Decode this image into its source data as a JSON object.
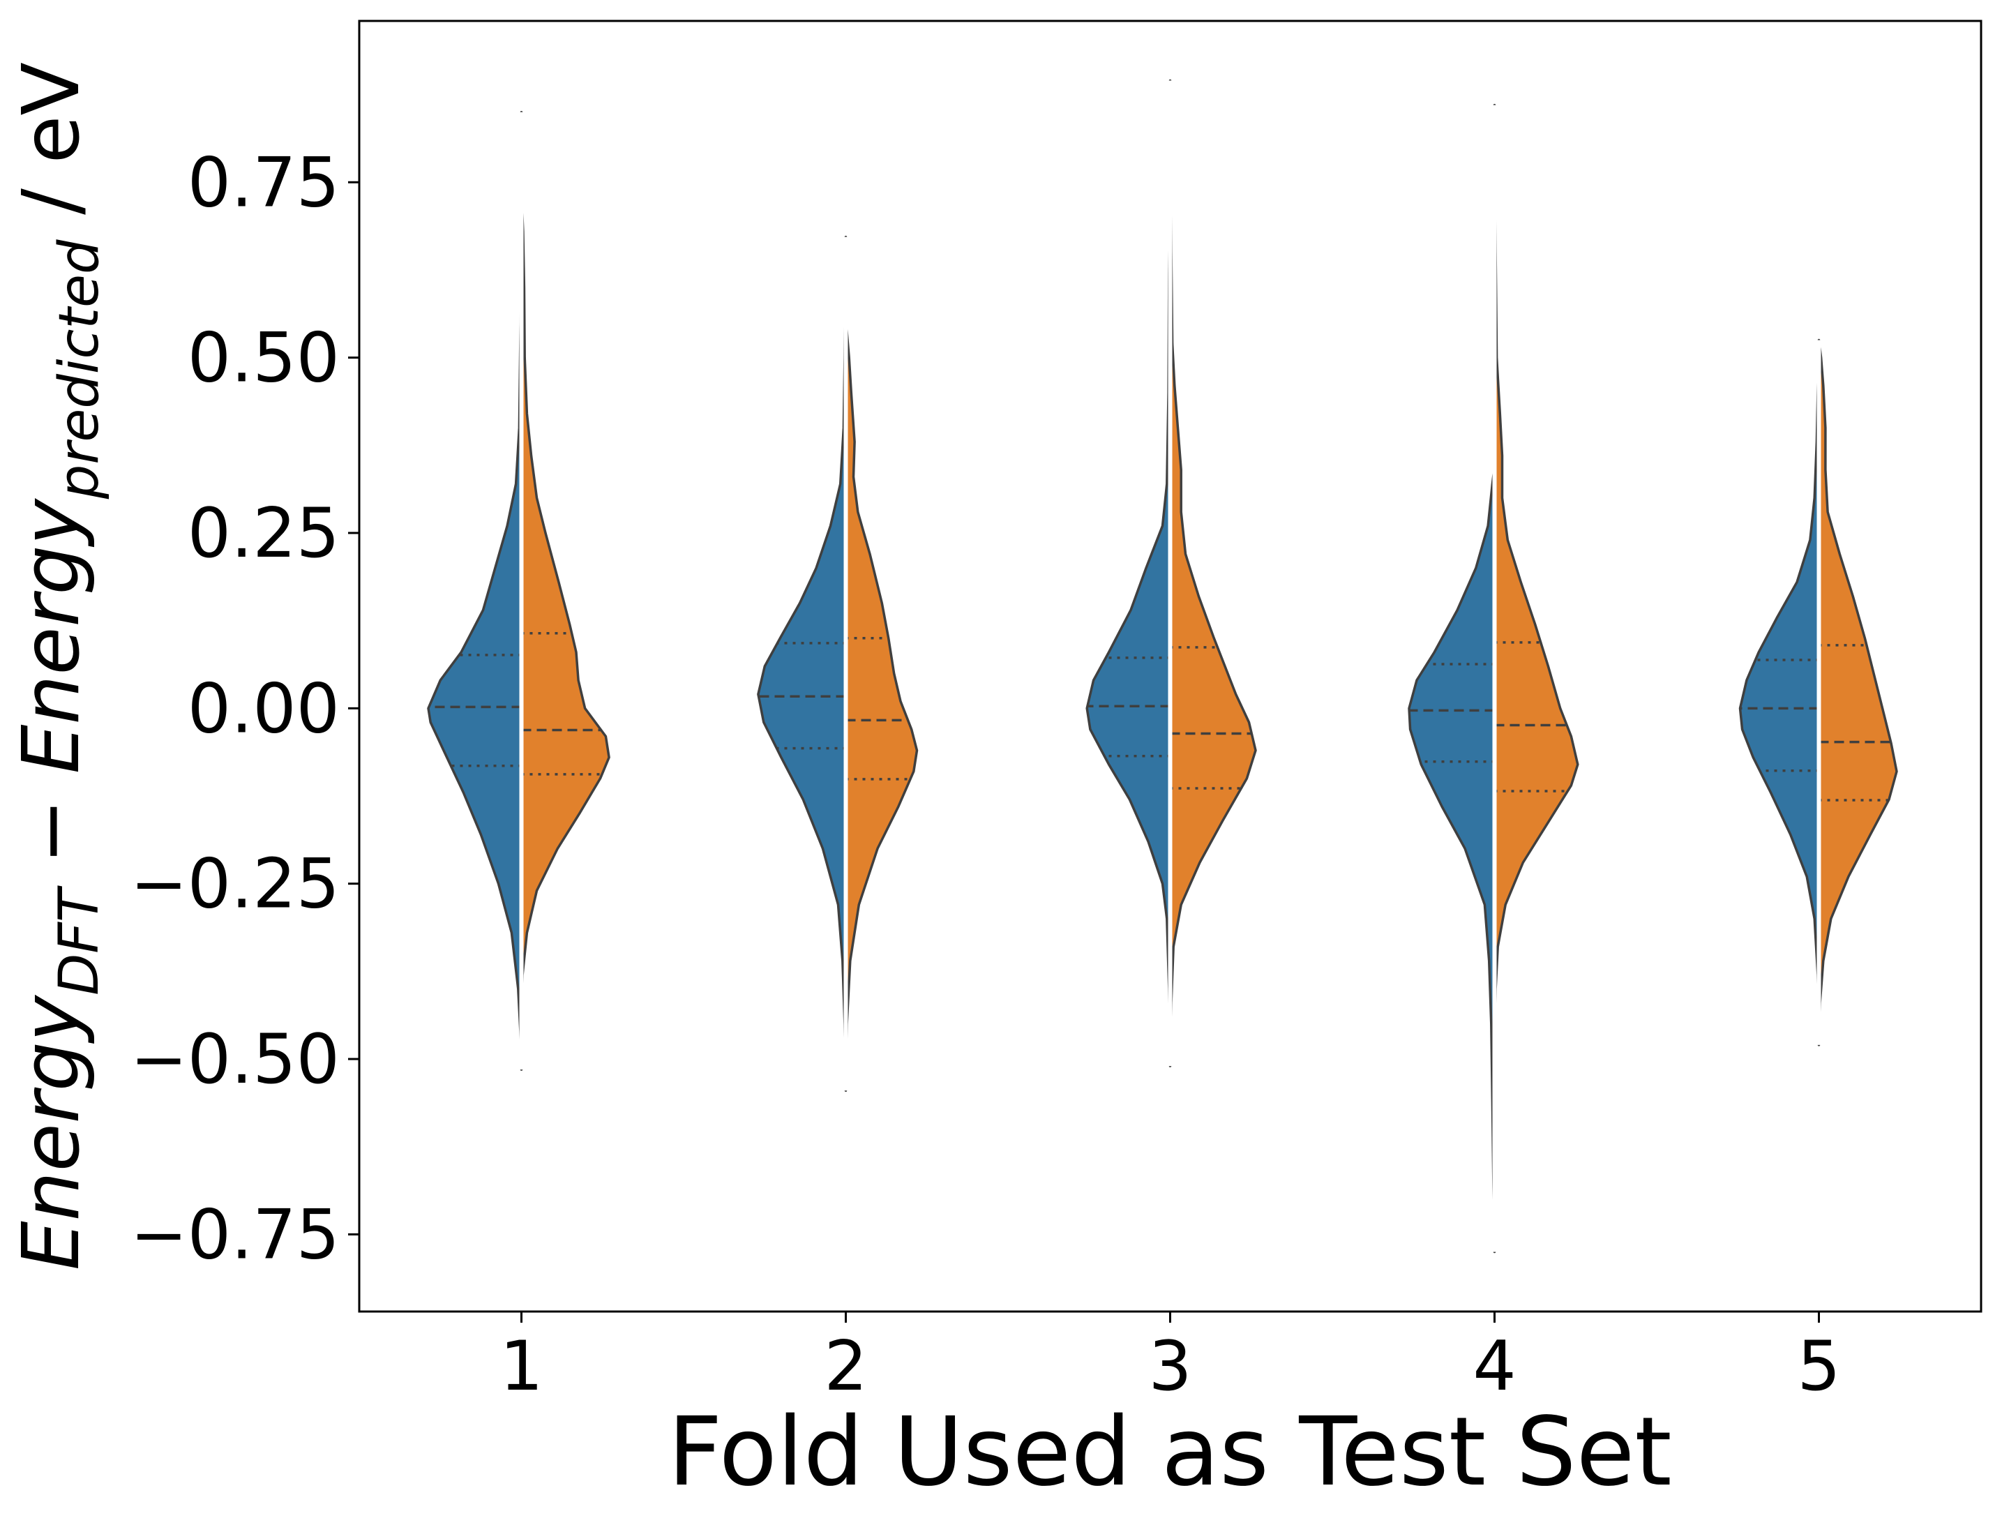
{
  "chart_data": {
    "type": "violin",
    "split": true,
    "xlabel": "Fold Used as Test Set",
    "ylabel": {
      "parts": [
        {
          "text": "Energy",
          "italic": true,
          "sub": false
        },
        {
          "text": "DFT",
          "italic": true,
          "sub": true
        },
        {
          "text": " − ",
          "italic": false,
          "sub": false
        },
        {
          "text": "Energy",
          "italic": true,
          "sub": false
        },
        {
          "text": "predicted",
          "italic": true,
          "sub": true
        },
        {
          "text": " / eV",
          "italic": false,
          "sub": false
        }
      ]
    },
    "ylim": [
      -0.86,
      0.98
    ],
    "yticks": [
      -0.75,
      -0.5,
      -0.25,
      0.0,
      0.25,
      0.5,
      0.75
    ],
    "ytick_labels": [
      "−0.75",
      "−0.50",
      "−0.25",
      "0.00",
      "0.25",
      "0.50",
      "0.75"
    ],
    "categories": [
      "1",
      "2",
      "3",
      "4",
      "5"
    ],
    "series": [
      {
        "side": "left",
        "color": "#3274a1"
      },
      {
        "side": "right",
        "color": "#e1812c"
      }
    ],
    "violins": [
      {
        "fold": "1",
        "left": {
          "min": -0.515,
          "max": 0.85,
          "q1": -0.082,
          "median": 0.002,
          "q3": 0.076,
          "profile": [
            [
              -0.515,
              0.0
            ],
            [
              -0.46,
              0.01
            ],
            [
              -0.4,
              0.03
            ],
            [
              -0.32,
              0.09
            ],
            [
              -0.25,
              0.21
            ],
            [
              -0.18,
              0.37
            ],
            [
              -0.12,
              0.53
            ],
            [
              -0.06,
              0.71
            ],
            [
              -0.02,
              0.83
            ],
            [
              0.0,
              0.85
            ],
            [
              0.04,
              0.74
            ],
            [
              0.08,
              0.55
            ],
            [
              0.14,
              0.35
            ],
            [
              0.2,
              0.24
            ],
            [
              0.26,
              0.13
            ],
            [
              0.32,
              0.05
            ],
            [
              0.4,
              0.02
            ],
            [
              0.55,
              0.008
            ],
            [
              0.7,
              0.005
            ],
            [
              0.85,
              0.0
            ]
          ]
        },
        "right": {
          "min": -0.435,
          "max": 0.735,
          "q1": -0.094,
          "median": -0.031,
          "q3": 0.107,
          "profile": [
            [
              -0.435,
              0.0
            ],
            [
              -0.38,
              0.01
            ],
            [
              -0.32,
              0.05
            ],
            [
              -0.26,
              0.14
            ],
            [
              -0.2,
              0.33
            ],
            [
              -0.15,
              0.53
            ],
            [
              -0.1,
              0.72
            ],
            [
              -0.07,
              0.8
            ],
            [
              -0.04,
              0.77
            ],
            [
              0.0,
              0.58
            ],
            [
              0.04,
              0.52
            ],
            [
              0.08,
              0.5
            ],
            [
              0.12,
              0.44
            ],
            [
              0.18,
              0.34
            ],
            [
              0.25,
              0.22
            ],
            [
              0.3,
              0.14
            ],
            [
              0.36,
              0.09
            ],
            [
              0.42,
              0.05
            ],
            [
              0.5,
              0.03
            ],
            [
              0.6,
              0.025
            ],
            [
              0.68,
              0.015
            ],
            [
              0.735,
              0.0
            ]
          ]
        }
      },
      {
        "fold": "2",
        "left": {
          "min": -0.54,
          "max": 0.672,
          "q1": -0.057,
          "median": 0.017,
          "q3": 0.093,
          "profile": [
            [
              -0.54,
              0.0
            ],
            [
              -0.45,
              0.01
            ],
            [
              -0.36,
              0.03
            ],
            [
              -0.28,
              0.07
            ],
            [
              -0.2,
              0.21
            ],
            [
              -0.13,
              0.39
            ],
            [
              -0.07,
              0.59
            ],
            [
              -0.02,
              0.75
            ],
            [
              0.02,
              0.8
            ],
            [
              0.06,
              0.74
            ],
            [
              0.1,
              0.6
            ],
            [
              0.15,
              0.42
            ],
            [
              0.2,
              0.27
            ],
            [
              0.26,
              0.14
            ],
            [
              0.32,
              0.05
            ],
            [
              0.4,
              0.02
            ],
            [
              0.5,
              0.01
            ],
            [
              0.6,
              0.005
            ],
            [
              0.672,
              0.0
            ]
          ]
        },
        "right": {
          "min": -0.545,
          "max": 0.555,
          "q1": -0.101,
          "median": -0.017,
          "q3": 0.1,
          "profile": [
            [
              -0.545,
              0.0
            ],
            [
              -0.45,
              0.01
            ],
            [
              -0.36,
              0.04
            ],
            [
              -0.28,
              0.12
            ],
            [
              -0.2,
              0.29
            ],
            [
              -0.14,
              0.48
            ],
            [
              -0.09,
              0.62
            ],
            [
              -0.06,
              0.65
            ],
            [
              -0.03,
              0.6
            ],
            [
              0.01,
              0.5
            ],
            [
              0.05,
              0.44
            ],
            [
              0.1,
              0.39
            ],
            [
              0.15,
              0.33
            ],
            [
              0.22,
              0.22
            ],
            [
              0.28,
              0.11
            ],
            [
              0.33,
              0.07
            ],
            [
              0.38,
              0.08
            ],
            [
              0.45,
              0.05
            ],
            [
              0.5,
              0.03
            ],
            [
              0.555,
              0.0
            ]
          ]
        }
      },
      {
        "fold": "3",
        "left": {
          "min": -0.495,
          "max": 0.77,
          "q1": -0.068,
          "median": 0.003,
          "q3": 0.072,
          "profile": [
            [
              -0.495,
              0.0
            ],
            [
              -0.4,
              0.01
            ],
            [
              -0.3,
              0.03
            ],
            [
              -0.25,
              0.07
            ],
            [
              -0.19,
              0.2
            ],
            [
              -0.13,
              0.37
            ],
            [
              -0.08,
              0.56
            ],
            [
              -0.03,
              0.73
            ],
            [
              0.0,
              0.76
            ],
            [
              0.04,
              0.7
            ],
            [
              0.08,
              0.56
            ],
            [
              0.14,
              0.36
            ],
            [
              0.2,
              0.22
            ],
            [
              0.26,
              0.07
            ],
            [
              0.32,
              0.03
            ],
            [
              0.45,
              0.015
            ],
            [
              0.62,
              0.01
            ],
            [
              0.77,
              0.0
            ]
          ]
        },
        "right": {
          "min": -0.51,
          "max": 0.895,
          "q1": -0.114,
          "median": -0.036,
          "q3": 0.087,
          "profile": [
            [
              -0.51,
              0.0
            ],
            [
              -0.42,
              0.01
            ],
            [
              -0.34,
              0.03
            ],
            [
              -0.28,
              0.1
            ],
            [
              -0.22,
              0.27
            ],
            [
              -0.16,
              0.48
            ],
            [
              -0.1,
              0.7
            ],
            [
              -0.06,
              0.78
            ],
            [
              -0.02,
              0.72
            ],
            [
              0.02,
              0.6
            ],
            [
              0.06,
              0.5
            ],
            [
              0.1,
              0.4
            ],
            [
              0.16,
              0.26
            ],
            [
              0.22,
              0.14
            ],
            [
              0.28,
              0.1
            ],
            [
              0.34,
              0.1
            ],
            [
              0.4,
              0.07
            ],
            [
              0.46,
              0.04
            ],
            [
              0.52,
              0.02
            ],
            [
              0.65,
              0.01
            ],
            [
              0.895,
              0.0
            ]
          ]
        }
      },
      {
        "fold": "4",
        "left": {
          "min": -0.775,
          "max": 0.345,
          "q1": -0.076,
          "median": -0.003,
          "q3": 0.063,
          "profile": [
            [
              -0.775,
              0.0
            ],
            [
              -0.68,
              0.01
            ],
            [
              -0.56,
              0.02
            ],
            [
              -0.45,
              0.03
            ],
            [
              -0.36,
              0.05
            ],
            [
              -0.28,
              0.09
            ],
            [
              -0.2,
              0.27
            ],
            [
              -0.14,
              0.48
            ],
            [
              -0.08,
              0.67
            ],
            [
              -0.03,
              0.77
            ],
            [
              0.0,
              0.78
            ],
            [
              0.04,
              0.71
            ],
            [
              0.08,
              0.55
            ],
            [
              0.14,
              0.34
            ],
            [
              0.2,
              0.17
            ],
            [
              0.26,
              0.06
            ],
            [
              0.32,
              0.02
            ],
            [
              0.345,
              0.0
            ]
          ]
        },
        "right": {
          "min": -0.495,
          "max": 0.86,
          "q1": -0.118,
          "median": -0.024,
          "q3": 0.094,
          "profile": [
            [
              -0.495,
              0.0
            ],
            [
              -0.4,
              0.01
            ],
            [
              -0.34,
              0.03
            ],
            [
              -0.28,
              0.1
            ],
            [
              -0.22,
              0.26
            ],
            [
              -0.16,
              0.5
            ],
            [
              -0.11,
              0.7
            ],
            [
              -0.08,
              0.76
            ],
            [
              -0.04,
              0.7
            ],
            [
              0.0,
              0.6
            ],
            [
              0.06,
              0.49
            ],
            [
              0.12,
              0.37
            ],
            [
              0.18,
              0.24
            ],
            [
              0.24,
              0.12
            ],
            [
              0.3,
              0.07
            ],
            [
              0.36,
              0.07
            ],
            [
              0.42,
              0.05
            ],
            [
              0.5,
              0.02
            ],
            [
              0.65,
              0.01
            ],
            [
              0.86,
              0.0
            ]
          ]
        }
      },
      {
        "fold": "5",
        "left": {
          "min": -0.44,
          "max": 0.515,
          "q1": -0.089,
          "median": 0.0,
          "q3": 0.069,
          "profile": [
            [
              -0.44,
              0.0
            ],
            [
              -0.38,
              0.01
            ],
            [
              -0.3,
              0.04
            ],
            [
              -0.24,
              0.11
            ],
            [
              -0.18,
              0.26
            ],
            [
              -0.12,
              0.44
            ],
            [
              -0.07,
              0.6
            ],
            [
              -0.03,
              0.7
            ],
            [
              0.0,
              0.72
            ],
            [
              0.04,
              0.66
            ],
            [
              0.08,
              0.55
            ],
            [
              0.13,
              0.38
            ],
            [
              0.18,
              0.2
            ],
            [
              0.24,
              0.08
            ],
            [
              0.3,
              0.04
            ],
            [
              0.38,
              0.02
            ],
            [
              0.45,
              0.01
            ],
            [
              0.515,
              0.0
            ]
          ]
        },
        "right": {
          "min": -0.48,
          "max": 0.525,
          "q1": -0.131,
          "median": -0.048,
          "q3": 0.09,
          "profile": [
            [
              -0.48,
              0.0
            ],
            [
              -0.42,
              0.01
            ],
            [
              -0.36,
              0.04
            ],
            [
              -0.3,
              0.11
            ],
            [
              -0.24,
              0.27
            ],
            [
              -0.18,
              0.47
            ],
            [
              -0.13,
              0.64
            ],
            [
              -0.09,
              0.71
            ],
            [
              -0.05,
              0.66
            ],
            [
              0.0,
              0.58
            ],
            [
              0.05,
              0.5
            ],
            [
              0.1,
              0.42
            ],
            [
              0.16,
              0.31
            ],
            [
              0.22,
              0.19
            ],
            [
              0.28,
              0.08
            ],
            [
              0.34,
              0.06
            ],
            [
              0.4,
              0.06
            ],
            [
              0.46,
              0.04
            ],
            [
              0.5,
              0.02
            ],
            [
              0.525,
              0.0
            ]
          ]
        }
      }
    ]
  }
}
